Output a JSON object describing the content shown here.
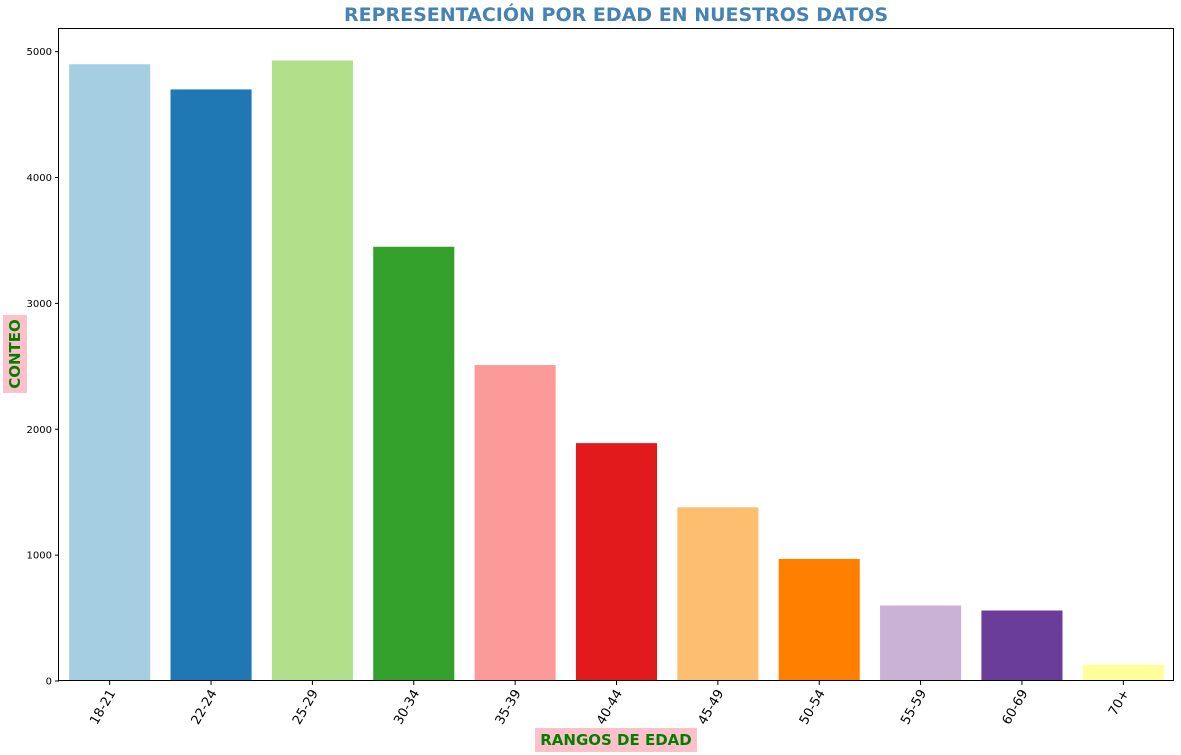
{
  "chart_data": {
    "type": "bar",
    "title": "REPRESENTACIÓN POR EDAD EN NUESTROS DATOS",
    "xlabel": "RANGOS DE EDAD",
    "ylabel": "CONTEO",
    "categories": [
      "18-21",
      "22-24",
      "25-29",
      "30-34",
      "35-39",
      "40-44",
      "45-49",
      "50-54",
      "55-59",
      "60-69",
      "70+"
    ],
    "values": [
      4900,
      4700,
      4930,
      3450,
      2510,
      1890,
      1380,
      970,
      600,
      560,
      130
    ],
    "colors": [
      "#a6cee3",
      "#1f78b4",
      "#b2df8a",
      "#33a02c",
      "#fb9a99",
      "#e31a1c",
      "#fdbf6f",
      "#ff7f00",
      "#cab2d6",
      "#6a3d9a",
      "#ffff99"
    ],
    "ylim": [
      0,
      5180
    ],
    "yticks": [
      0,
      1000,
      2000,
      3000,
      4000,
      5000
    ],
    "grid": false,
    "title_color": "#4682b4",
    "axis_label_color": "#008000",
    "axis_label_background": "#ffc0cb"
  }
}
